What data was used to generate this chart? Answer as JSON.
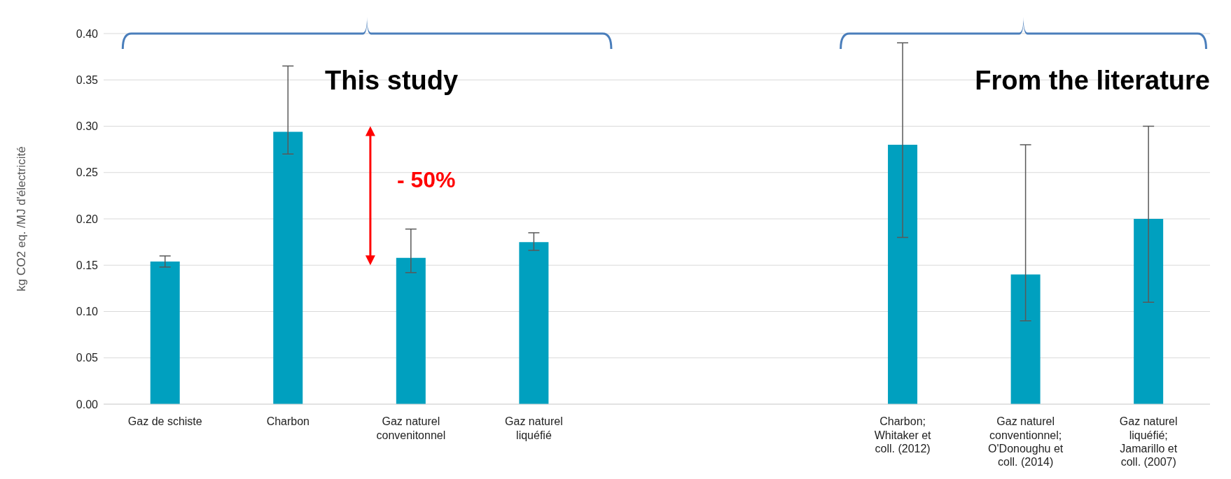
{
  "chart_data": {
    "type": "bar",
    "ylabel": "kg CO2 eq. /MJ d'électricité",
    "categories": [
      "Gaz de schiste",
      "Charbon",
      "Gaz naturel convenitonnel",
      "Gaz naturel liquéfié",
      null,
      null,
      "Charbon; Whitaker et coll. (2012)",
      "Gaz naturel conventionnel; O'Donoughu et coll. (2014)",
      "Gaz naturel liquéfié; Jamarillo et coll. (2007)"
    ],
    "values": [
      0.154,
      0.294,
      0.158,
      0.175,
      null,
      null,
      0.28,
      0.14,
      0.2
    ],
    "errors": [
      [
        0.148,
        0.16
      ],
      [
        0.27,
        0.365
      ],
      [
        0.142,
        0.189
      ],
      [
        0.166,
        0.185
      ],
      null,
      null,
      [
        0.18,
        0.39
      ],
      [
        0.09,
        0.28
      ],
      [
        0.11,
        0.3
      ]
    ],
    "color": "#00a0bf",
    "ylim": [
      0,
      0.4
    ],
    "yticks": [
      {
        "value": 0,
        "label": "0.00"
      },
      {
        "value": 0.05,
        "label": "0.05"
      },
      {
        "value": 0.1,
        "label": "0.10"
      },
      {
        "value": 0.15,
        "label": "0.15"
      },
      {
        "value": 0.2,
        "label": "0.20"
      },
      {
        "value": 0.25,
        "label": "0.25"
      },
      {
        "value": 0.3,
        "label": "0.30"
      },
      {
        "value": 0.35,
        "label": "0.35"
      },
      {
        "value": 0.4,
        "label": "0.40"
      }
    ],
    "grid": "y",
    "annotations": [
      "This study",
      "From the literature",
      "- 50%"
    ]
  }
}
